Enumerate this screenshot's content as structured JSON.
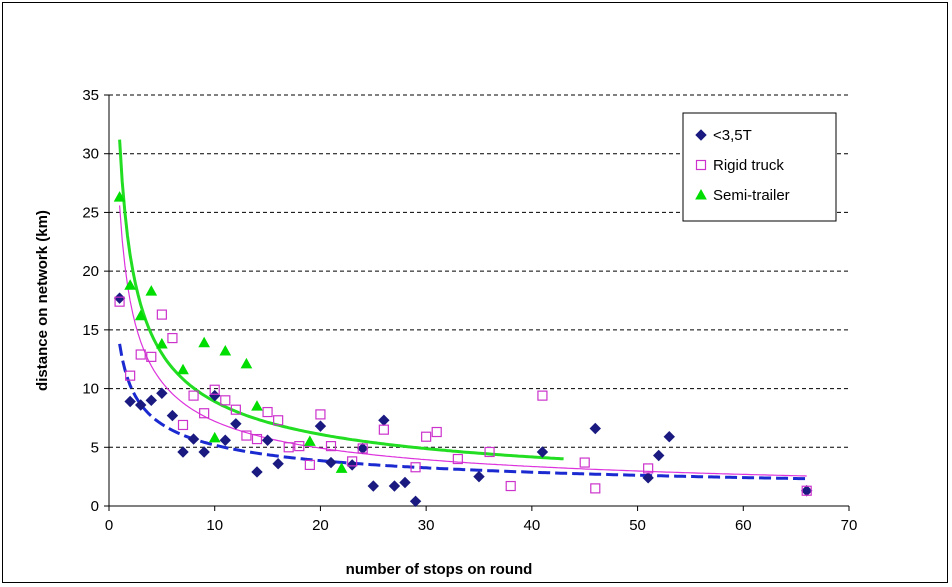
{
  "chart_data": {
    "type": "scatter",
    "title": "",
    "xlabel": "number of stops on round",
    "ylabel": "distance on network (km)",
    "xlim": [
      0,
      70
    ],
    "ylim": [
      0,
      35
    ],
    "xticks": [
      0,
      10,
      20,
      30,
      40,
      50,
      60,
      70
    ],
    "yticks": [
      0,
      5,
      10,
      15,
      20,
      25,
      30,
      35
    ],
    "grid": "horizontal dashed",
    "legend_position": "top-right",
    "series": [
      {
        "name": "<3,5T",
        "marker": "diamond",
        "color": "#1a1a80",
        "points": [
          [
            1,
            17.7
          ],
          [
            2,
            8.9
          ],
          [
            3,
            8.6
          ],
          [
            4,
            9.0
          ],
          [
            5,
            9.6
          ],
          [
            6,
            7.7
          ],
          [
            7,
            4.6
          ],
          [
            8,
            5.7
          ],
          [
            9,
            4.6
          ],
          [
            10,
            9.4
          ],
          [
            11,
            5.6
          ],
          [
            12,
            7.0
          ],
          [
            14,
            2.9
          ],
          [
            15,
            5.6
          ],
          [
            16,
            3.6
          ],
          [
            20,
            6.8
          ],
          [
            21,
            3.7
          ],
          [
            23,
            3.5
          ],
          [
            24,
            4.9
          ],
          [
            25,
            1.7
          ],
          [
            26,
            7.3
          ],
          [
            27,
            1.7
          ],
          [
            28,
            2.0
          ],
          [
            29,
            0.4
          ],
          [
            35,
            2.5
          ],
          [
            41,
            4.6
          ],
          [
            46,
            6.6
          ],
          [
            51,
            2.4
          ],
          [
            52,
            4.3
          ],
          [
            53,
            5.9
          ],
          [
            66,
            1.3
          ]
        ]
      },
      {
        "name": "Rigid truck",
        "marker": "square-open",
        "color": "#cc33cc",
        "points": [
          [
            1,
            17.4
          ],
          [
            2,
            11.1
          ],
          [
            3,
            12.9
          ],
          [
            4,
            12.7
          ],
          [
            5,
            16.3
          ],
          [
            6,
            14.3
          ],
          [
            7,
            6.9
          ],
          [
            8,
            9.4
          ],
          [
            9,
            7.9
          ],
          [
            10,
            9.9
          ],
          [
            11,
            9.0
          ],
          [
            12,
            8.2
          ],
          [
            13,
            6.0
          ],
          [
            14,
            5.7
          ],
          [
            15,
            8.0
          ],
          [
            16,
            7.3
          ],
          [
            17,
            5.0
          ],
          [
            18,
            5.1
          ],
          [
            19,
            3.5
          ],
          [
            20,
            7.8
          ],
          [
            21,
            5.1
          ],
          [
            23,
            3.8
          ],
          [
            24,
            4.9
          ],
          [
            26,
            6.5
          ],
          [
            29,
            3.3
          ],
          [
            30,
            5.9
          ],
          [
            31,
            6.3
          ],
          [
            33,
            4.0
          ],
          [
            36,
            4.6
          ],
          [
            38,
            1.7
          ],
          [
            41,
            9.4
          ],
          [
            45,
            3.7
          ],
          [
            46,
            1.5
          ],
          [
            51,
            3.2
          ],
          [
            66,
            1.3
          ]
        ]
      },
      {
        "name": "Semi-trailer",
        "marker": "triangle",
        "color": "#00dd00",
        "points": [
          [
            1,
            26.3
          ],
          [
            2,
            18.8
          ],
          [
            3,
            16.2
          ],
          [
            4,
            18.3
          ],
          [
            5,
            13.8
          ],
          [
            7,
            11.6
          ],
          [
            9,
            13.9
          ],
          [
            11,
            13.2
          ],
          [
            13,
            12.1
          ],
          [
            14,
            8.5
          ],
          [
            10,
            5.8
          ],
          [
            19,
            5.5
          ],
          [
            22,
            3.2
          ]
        ]
      }
    ],
    "trendlines": [
      {
        "series": "<3,5T",
        "a": 13.8,
        "b": 0.425,
        "x_range": [
          1,
          66
        ],
        "color": "#1a2ad0",
        "style": "dashed"
      },
      {
        "series": "Rigid truck",
        "a": 25.6,
        "b": 0.55,
        "x_range": [
          1,
          66
        ],
        "color": "#dd33dd",
        "style": "solid-thin"
      },
      {
        "series": "Semi-trailer",
        "a": 31.2,
        "b": 0.545,
        "x_range": [
          1,
          43
        ],
        "color": "#22dd22",
        "style": "solid-thick"
      }
    ]
  }
}
